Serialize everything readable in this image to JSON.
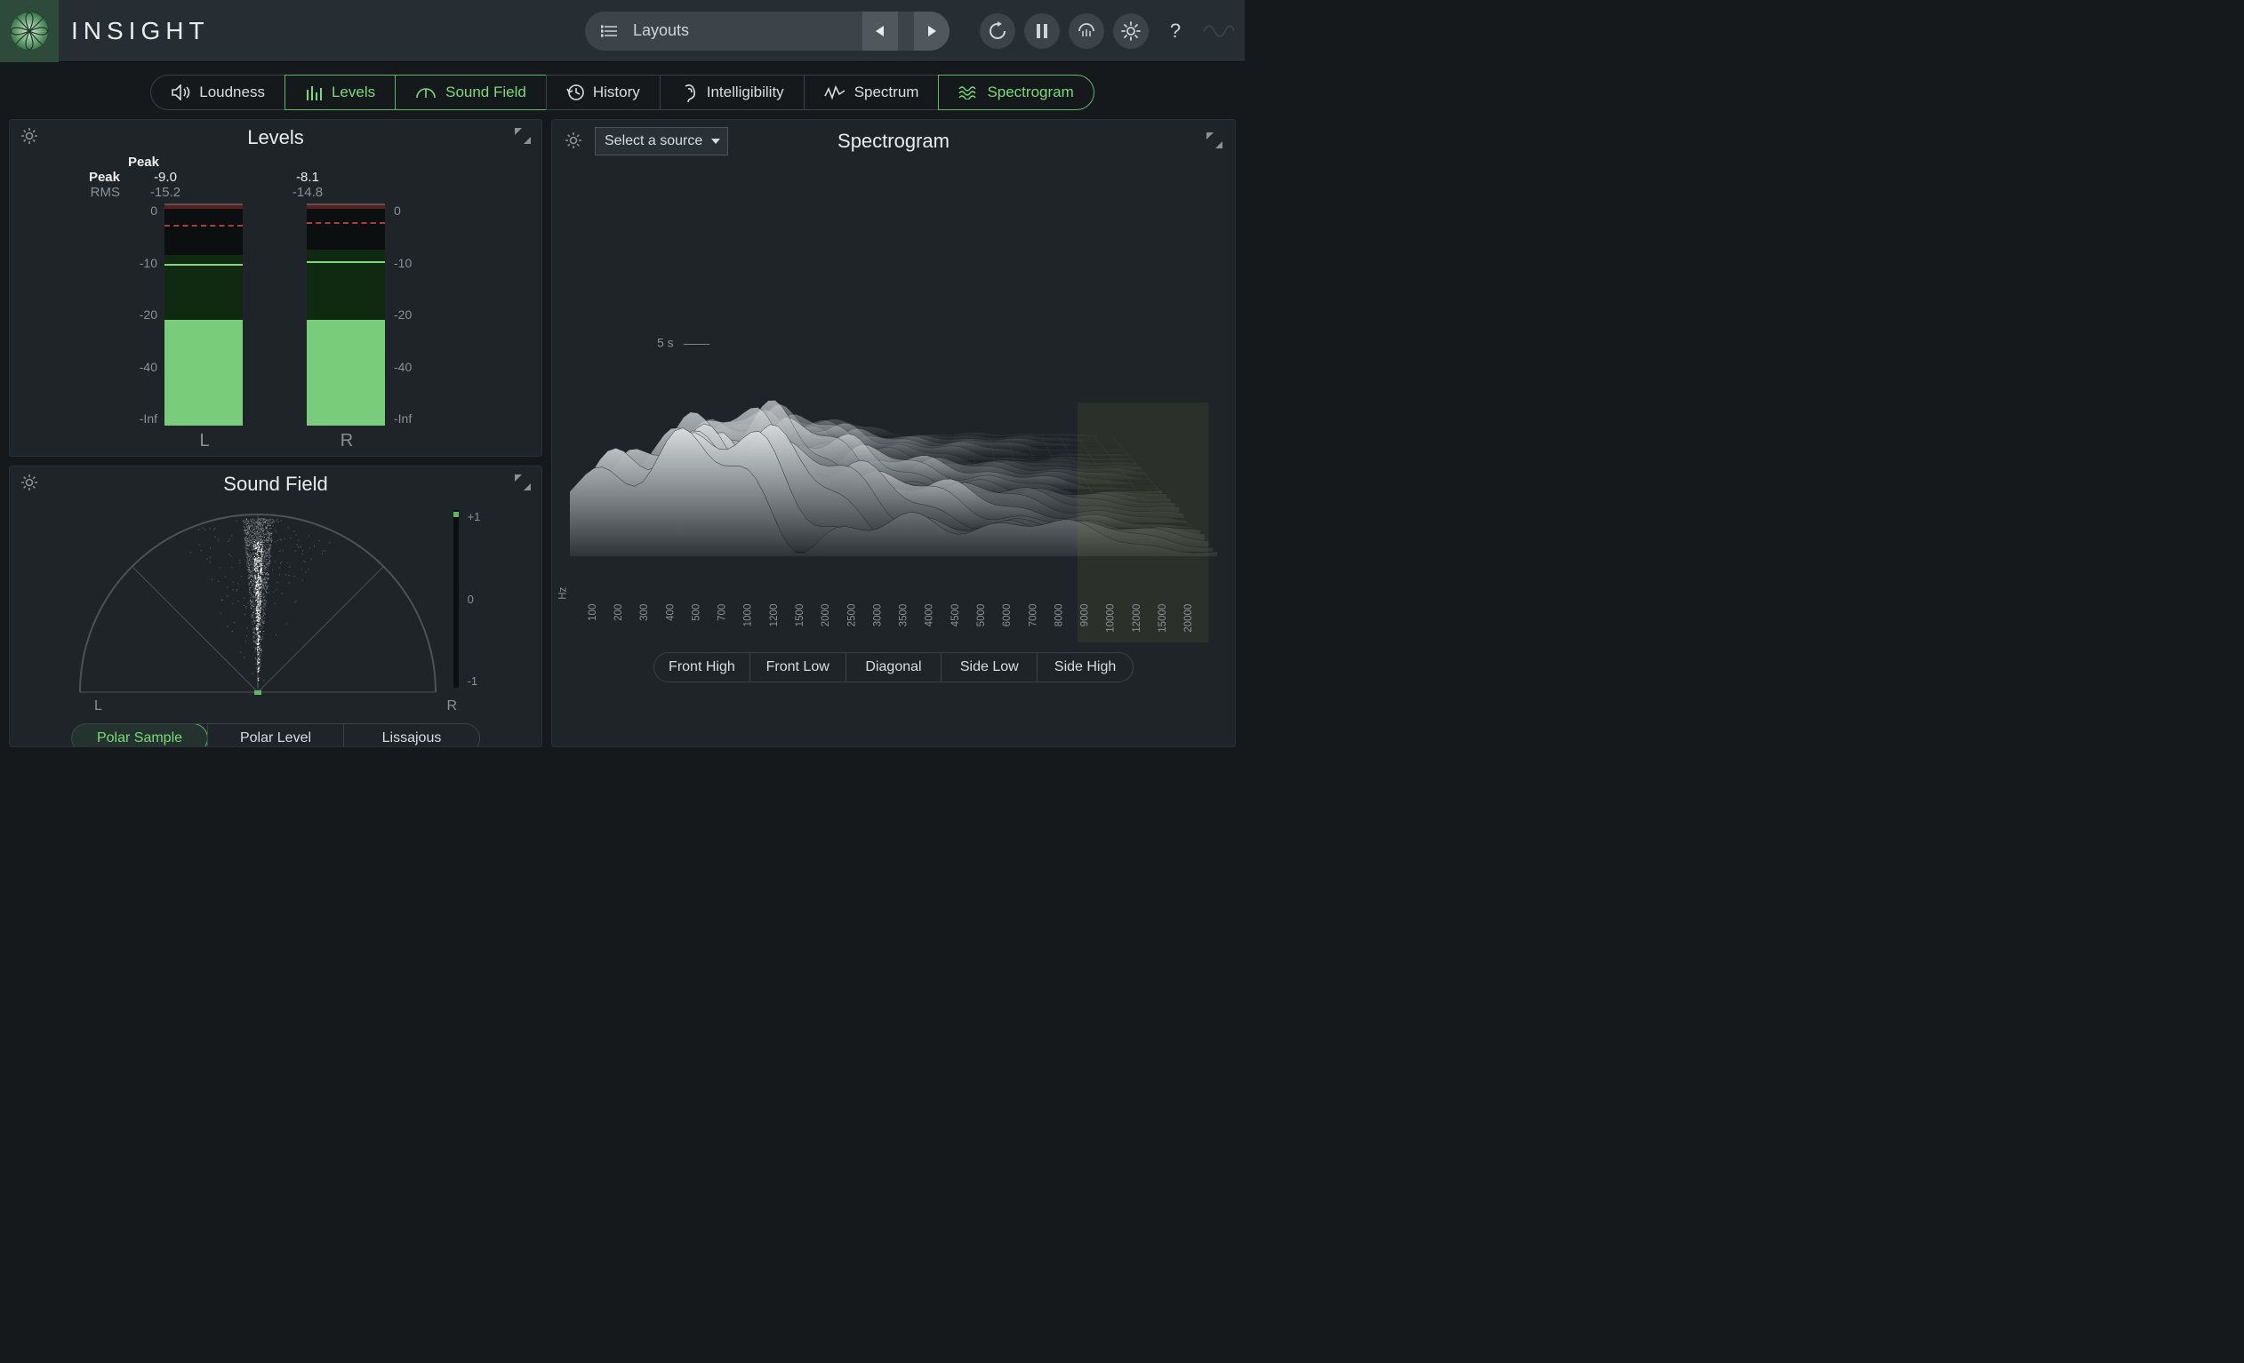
{
  "app": {
    "brand": "INSIGHT",
    "layouts_label": "Layouts"
  },
  "tabs": [
    {
      "id": "loudness",
      "label": "Loudness",
      "active": false
    },
    {
      "id": "levels",
      "label": "Levels",
      "active": true
    },
    {
      "id": "soundfield",
      "label": "Sound Field",
      "active": true
    },
    {
      "id": "history",
      "label": "History",
      "active": false
    },
    {
      "id": "intelligibility",
      "label": "Intelligibility",
      "active": false
    },
    {
      "id": "spectrum",
      "label": "Spectrum",
      "active": false
    },
    {
      "id": "spectrogram",
      "label": "Spectrogram",
      "active": true
    }
  ],
  "levels": {
    "title": "Levels",
    "peak_label": "Peak",
    "rms_label": "RMS",
    "scale_ticks": [
      "0",
      "-10",
      "-20",
      "-40",
      "-Inf"
    ],
    "scale_range_db": [
      0,
      -60
    ],
    "channels": [
      {
        "name": "L",
        "peak": "-9.0",
        "rms": "-15.2",
        "bar_top_db": -22,
        "dark_zone_db": [
          -9,
          -22
        ],
        "peak_line_db": -10.5,
        "red_dash_db": -3.5
      },
      {
        "name": "R",
        "peak": "-8.1",
        "rms": "-14.8",
        "bar_top_db": -22,
        "dark_zone_db": [
          -8,
          -22
        ],
        "peak_line_db": -10,
        "red_dash_db": -3
      }
    ],
    "colors": {
      "bar_fill": "#79cc79",
      "bar_dark": "#102a12",
      "peak_line": "#7cd97c",
      "red_dash": "#b33a3a",
      "red_top": "#5a1e1e",
      "track_bg": "#0c0f10"
    }
  },
  "soundfield": {
    "title": "Sound Field",
    "left_label": "L",
    "right_label": "R",
    "side_scale": [
      "+1",
      "0",
      "-1"
    ],
    "modes": [
      {
        "label": "Polar Sample",
        "active": true
      },
      {
        "label": "Polar Level",
        "active": false
      },
      {
        "label": "Lissajous",
        "active": false
      }
    ],
    "arc_stroke": "#4a5358",
    "data_color": "#e8eced",
    "correlation_dot_color": "#5eb95e",
    "correlation_value": 0.98
  },
  "spectrogram": {
    "title": "Spectrogram",
    "source_placeholder": "Select a source",
    "time_marker": "5 s",
    "freq_label": "Hz",
    "freq_ticks": [
      "100",
      "200",
      "300",
      "400",
      "500",
      "700",
      "1000",
      "1200",
      "1500",
      "2000",
      "2500",
      "3000",
      "3500",
      "4000",
      "4500",
      "5000",
      "6000",
      "7000",
      "8000",
      "9000",
      "10000",
      "12000",
      "15000",
      "20000"
    ],
    "views": [
      {
        "label": "Front High"
      },
      {
        "label": "Front Low"
      },
      {
        "label": "Diagonal"
      },
      {
        "label": "Side Low"
      },
      {
        "label": "Side High"
      }
    ],
    "surface_light": "#d8dcde",
    "surface_dark": "#2e3436",
    "surface_accent": "#8a8f3a",
    "grid_color": "#3a4248"
  },
  "colors": {
    "background": "#15191c",
    "panel": "#1e2428",
    "panel_border": "#2a3136",
    "header": "#262e33",
    "accent": "#5eb95e",
    "accent_bright": "#7cd97c",
    "text": "#d8dde0",
    "text_dim": "#8a9298"
  }
}
